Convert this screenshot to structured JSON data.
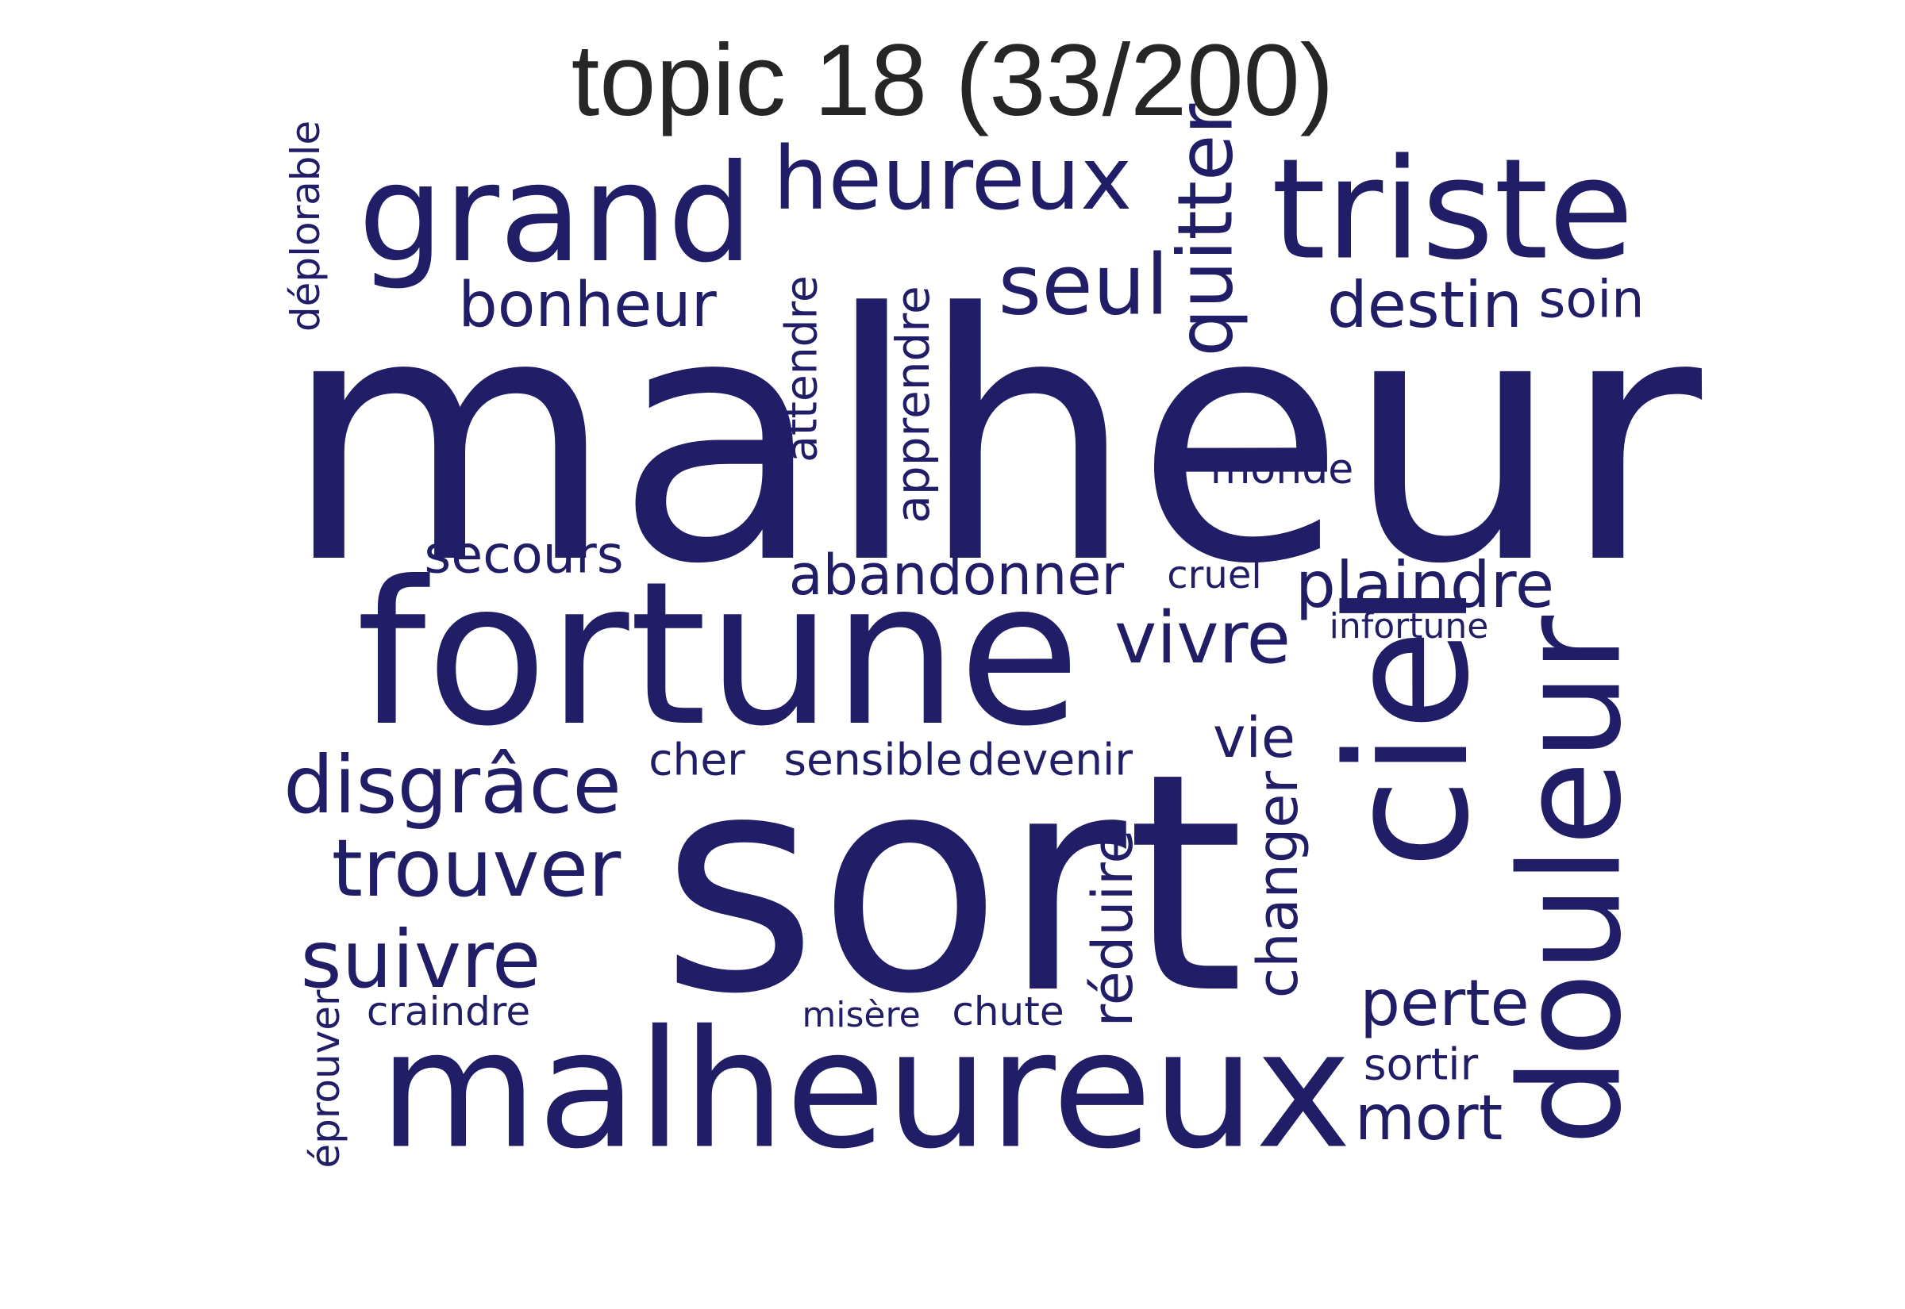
{
  "title": "topic 18 (33/200)",
  "word_color": "#211d66",
  "words": [
    {
      "text": "malheur",
      "weight": 1.0,
      "vertical": false
    },
    {
      "text": "sort",
      "weight": 0.88,
      "vertical": false
    },
    {
      "text": "fortune",
      "weight": 0.68,
      "vertical": false
    },
    {
      "text": "malheureux",
      "weight": 0.58,
      "vertical": false
    },
    {
      "text": "ciel",
      "weight": 0.52,
      "vertical": true
    },
    {
      "text": "douleur",
      "weight": 0.44,
      "vertical": true
    },
    {
      "text": "grand",
      "weight": 0.42,
      "vertical": false
    },
    {
      "text": "triste",
      "weight": 0.42,
      "vertical": false
    },
    {
      "text": "heureux",
      "weight": 0.28,
      "vertical": false
    },
    {
      "text": "seul",
      "weight": 0.27,
      "vertical": false
    },
    {
      "text": "quitter",
      "weight": 0.25,
      "vertical": true
    },
    {
      "text": "disgrâce",
      "weight": 0.27,
      "vertical": false
    },
    {
      "text": "trouver",
      "weight": 0.27,
      "vertical": false
    },
    {
      "text": "suivre",
      "weight": 0.26,
      "vertical": false
    },
    {
      "text": "vivre",
      "weight": 0.24,
      "vertical": false
    },
    {
      "text": "plaindre",
      "weight": 0.22,
      "vertical": false
    },
    {
      "text": "destin",
      "weight": 0.21,
      "vertical": false
    },
    {
      "text": "bonheur",
      "weight": 0.21,
      "vertical": false
    },
    {
      "text": "perte",
      "weight": 0.21,
      "vertical": false
    },
    {
      "text": "mort",
      "weight": 0.21,
      "vertical": false
    },
    {
      "text": "abandonner",
      "weight": 0.19,
      "vertical": false
    },
    {
      "text": "réduire",
      "weight": 0.19,
      "vertical": true
    },
    {
      "text": "changer",
      "weight": 0.19,
      "vertical": true
    },
    {
      "text": "apprendre",
      "weight": 0.17,
      "vertical": true
    },
    {
      "text": "vie",
      "weight": 0.18,
      "vertical": false
    },
    {
      "text": "soin",
      "weight": 0.17,
      "vertical": false
    },
    {
      "text": "secours",
      "weight": 0.17,
      "vertical": false
    },
    {
      "text": "attendre",
      "weight": 0.15,
      "vertical": true
    },
    {
      "text": "monde",
      "weight": 0.14,
      "vertical": false
    },
    {
      "text": "sensible",
      "weight": 0.14,
      "vertical": false
    },
    {
      "text": "devenir",
      "weight": 0.14,
      "vertical": false
    },
    {
      "text": "cher",
      "weight": 0.14,
      "vertical": false
    },
    {
      "text": "sortir",
      "weight": 0.14,
      "vertical": false
    },
    {
      "text": "chute",
      "weight": 0.13,
      "vertical": false
    },
    {
      "text": "craindre",
      "weight": 0.13,
      "vertical": false
    },
    {
      "text": "déplorable",
      "weight": 0.12,
      "vertical": true
    },
    {
      "text": "éprouver",
      "weight": 0.12,
      "vertical": true
    },
    {
      "text": "cruel",
      "weight": 0.12,
      "vertical": false
    },
    {
      "text": "infortune",
      "weight": 0.11,
      "vertical": false
    },
    {
      "text": "misère",
      "weight": 0.11,
      "vertical": false
    }
  ]
}
